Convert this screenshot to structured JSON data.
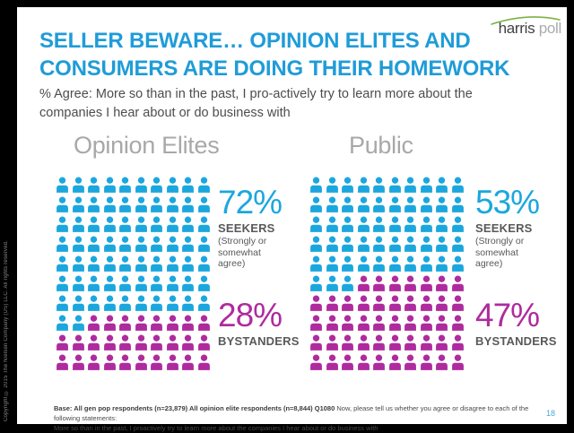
{
  "page": {
    "copyright": "Copyright © 2015 The Nielsen Company (US) LLC. All rights reserved.",
    "page_number": "18"
  },
  "logo": {
    "word1": "harris",
    "word2": "poll",
    "swoosh_color": "#7cb342"
  },
  "header": {
    "title": "SELLER BEWARE… OPINION ELITES AND CONSUMERS ARE DOING THEIR HOMEWORK",
    "subtitle": "% Agree: More so than in the past, I pro-actively try to learn more about the companies I hear about or do business with"
  },
  "footer": {
    "base_bold": "Base: All gen pop respondents (n=23,879) All opinion elite respondents (n=8,844) Q1080",
    "base_regular": " Now, please tell us whether you agree or disagree to each of the following statements:",
    "line2": "More so than in the past, I proactively try to learn more about the companies I hear about or do business with"
  },
  "chart_data": {
    "type": "pictogram",
    "unit": "1 icon = 1 percent of respondents",
    "grid": {
      "rows": 10,
      "cols": 10,
      "fill_order": "row-major-top-left"
    },
    "colors": {
      "seekers": "#1ba7de",
      "bystanders": "#ae2b9e"
    },
    "groups": [
      {
        "label": "Opinion Elites",
        "segments": [
          {
            "name": "SEEKERS",
            "value": 72,
            "percent_label": "72%",
            "sublabel": "(Strongly or somewhat agree)",
            "color_key": "seekers"
          },
          {
            "name": "BYSTANDERS",
            "value": 28,
            "percent_label": "28%",
            "sublabel": "",
            "color_key": "bystanders"
          }
        ]
      },
      {
        "label": "Public",
        "segments": [
          {
            "name": "SEEKERS",
            "value": 53,
            "percent_label": "53%",
            "sublabel": "(Strongly or somewhat agree)",
            "color_key": "seekers"
          },
          {
            "name": "BYSTANDERS",
            "value": 47,
            "percent_label": "47%",
            "sublabel": "",
            "color_key": "bystanders"
          }
        ]
      }
    ]
  }
}
